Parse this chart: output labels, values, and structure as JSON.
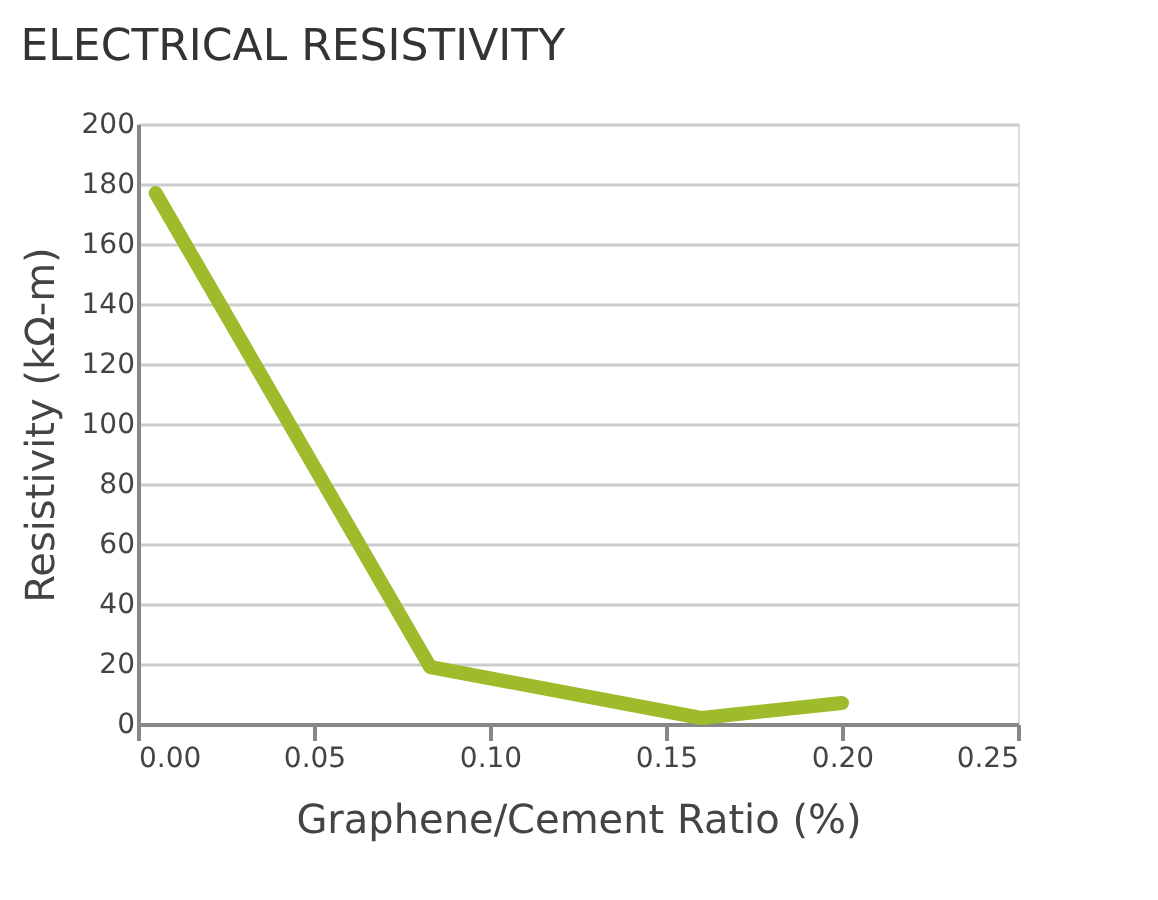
{
  "chart_data": {
    "type": "line",
    "title": "ELECTRICAL RESISTIVITY",
    "xlabel": "Graphene/Cement Ratio (%)",
    "ylabel": "Resistivity (kΩ-m)",
    "x": [
      0.005,
      0.083,
      0.16,
      0.2
    ],
    "series": [
      {
        "color": "#9dbb2b",
        "values": [
          177,
          19,
          2,
          7
        ]
      }
    ],
    "xlim": [
      0,
      0.25
    ],
    "xticks": [
      {
        "value": 0,
        "label": "0.00"
      },
      0.05,
      {
        "value": 0.1,
        "label": "0.10"
      },
      0.15,
      {
        "value": 0.2,
        "label": "0.20"
      },
      0.25
    ],
    "ylim": [
      0,
      200
    ],
    "yticks": [
      0,
      20,
      40,
      60,
      80,
      100,
      120,
      140,
      160,
      180,
      200
    ],
    "grid": "y",
    "marker": "none",
    "line_style": "solid"
  }
}
